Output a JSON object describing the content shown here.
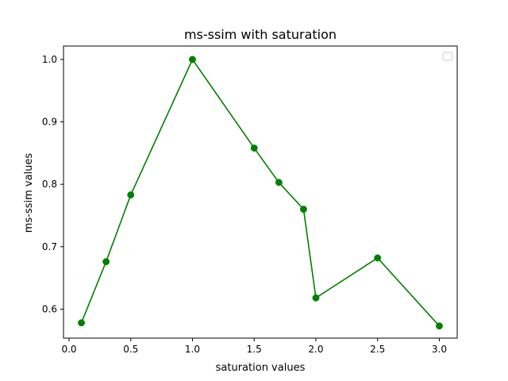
{
  "chart_data": {
    "type": "line",
    "title": "ms-ssim with saturation",
    "xlabel": "saturation values",
    "ylabel": "ms-ssim values",
    "xlim": [
      -0.045,
      3.145
    ],
    "ylim": [
      0.5535,
      1.0215
    ],
    "xticks": [
      0.0,
      0.5,
      1.0,
      1.5,
      2.0,
      2.5,
      3.0
    ],
    "xtick_labels": [
      "0.0",
      "0.5",
      "1.0",
      "1.5",
      "2.0",
      "2.5",
      "3.0"
    ],
    "yticks": [
      0.6,
      0.7,
      0.8,
      0.9,
      1.0
    ],
    "ytick_labels": [
      "0.6",
      "0.7",
      "0.8",
      "0.9",
      "1.0"
    ],
    "grid": false,
    "legend": {
      "placement": "top-right",
      "entries": []
    },
    "series": [
      {
        "color": "#008000",
        "marker": "circle",
        "x": [
          0.1,
          0.3,
          0.5,
          1.0,
          1.5,
          1.7,
          1.9,
          2.0,
          2.5,
          3.0
        ],
        "y": [
          0.578,
          0.676,
          0.783,
          1.0,
          0.858,
          0.803,
          0.76,
          0.618,
          0.682,
          0.573
        ]
      }
    ]
  }
}
